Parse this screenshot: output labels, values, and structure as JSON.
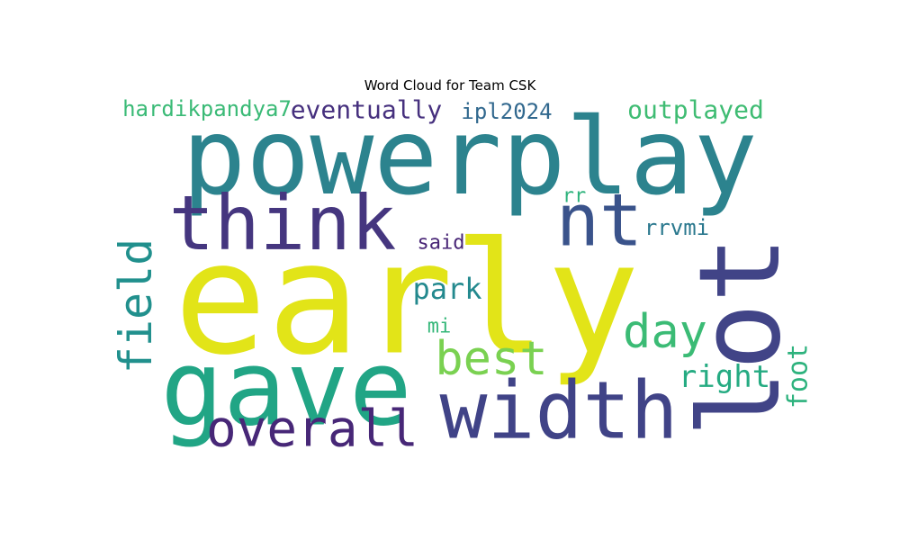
{
  "chart_data": {
    "type": "wordcloud",
    "title": "Word Cloud for Team CSK",
    "words": [
      {
        "text": "early",
        "color": "#e2e418",
        "rotate": false
      },
      {
        "text": "powerplay",
        "color": "#2c838e",
        "rotate": false
      },
      {
        "text": "gave",
        "color": "#21a585",
        "rotate": false
      },
      {
        "text": "lot",
        "color": "#414487",
        "rotate": true
      },
      {
        "text": "width",
        "color": "#404387",
        "rotate": false
      },
      {
        "text": "think",
        "color": "#45367f",
        "rotate": false
      },
      {
        "text": "nt",
        "color": "#3a538b",
        "rotate": false
      },
      {
        "text": "overall",
        "color": "#472777",
        "rotate": false
      },
      {
        "text": "best",
        "color": "#7ad151",
        "rotate": false
      },
      {
        "text": "day",
        "color": "#3bbb75",
        "rotate": false
      },
      {
        "text": "field",
        "color": "#21908d",
        "rotate": true
      },
      {
        "text": "park",
        "color": "#23898e",
        "rotate": false
      },
      {
        "text": "right",
        "color": "#25ab82",
        "rotate": false
      },
      {
        "text": "foot",
        "color": "#2db27d",
        "rotate": true
      },
      {
        "text": "eventually",
        "color": "#46307e",
        "rotate": false
      },
      {
        "text": "outplayed",
        "color": "#3fbc73",
        "rotate": false
      },
      {
        "text": "hardikpandya7",
        "color": "#3aba76",
        "rotate": false
      },
      {
        "text": "ipl2024",
        "color": "#31688e",
        "rotate": false
      },
      {
        "text": "rrvmi",
        "color": "#2a788e",
        "rotate": false
      },
      {
        "text": "said",
        "color": "#482576",
        "rotate": false
      },
      {
        "text": "rr",
        "color": "#2eb37c",
        "rotate": false
      },
      {
        "text": "mi",
        "color": "#35b779",
        "rotate": false
      }
    ]
  }
}
